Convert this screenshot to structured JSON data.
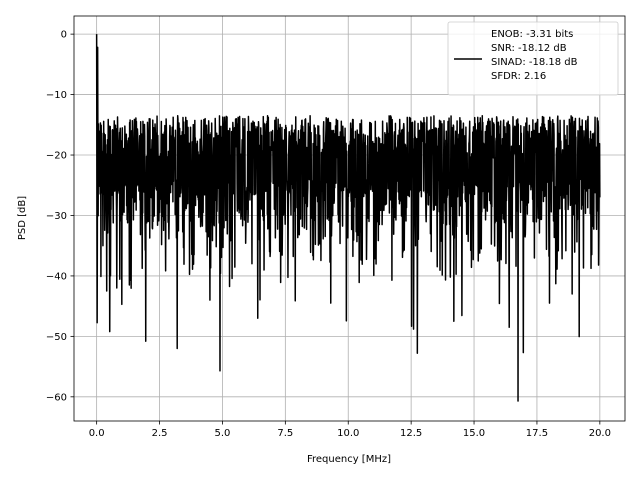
{
  "chart_data": {
    "type": "line",
    "title": "",
    "xlabel": "Frequency [MHz]",
    "ylabel": "PSD [dB]",
    "xlim": [
      -0.9,
      21.0
    ],
    "ylim": [
      -64.0,
      3.0
    ],
    "xticks": [
      0.0,
      2.5,
      5.0,
      7.5,
      10.0,
      12.5,
      15.0,
      17.5,
      20.0
    ],
    "xtick_labels": [
      "0.0",
      "2.5",
      "5.0",
      "7.5",
      "10.0",
      "12.5",
      "15.0",
      "17.5",
      "20.0"
    ],
    "yticks": [
      0,
      -10,
      -20,
      -30,
      -40,
      -50,
      -60
    ],
    "ytick_labels": [
      "0",
      "−10",
      "−20",
      "−30",
      "−40",
      "−50",
      "−60"
    ],
    "grid": true,
    "legend_position": "top-right",
    "series": [
      {
        "name": "ENOB: -3.31 bits\nSNR: -18.12 dB\nSINAD: -18.18 dB\nSFDR: 2.16",
        "color": "#000000",
        "x_range": [
          0.0,
          20.0
        ],
        "n_points": 2000,
        "peak": {
          "x": 0.0,
          "y": 0.0
        },
        "spurs": [
          {
            "x": 0.04,
            "y": -2.2
          },
          {
            "x": 0.12,
            "y": -17.5
          },
          {
            "x": 0.25,
            "y": -35.0
          },
          {
            "x": 0.4,
            "y": -42.5
          },
          {
            "x": 0.55,
            "y": -40.0
          },
          {
            "x": 0.8,
            "y": -42.0
          },
          {
            "x": 1.0,
            "y": -44.7
          },
          {
            "x": 1.3,
            "y": -41.5
          },
          {
            "x": 1.95,
            "y": -50.8
          },
          {
            "x": 3.2,
            "y": -52.0
          },
          {
            "x": 4.5,
            "y": -44.0
          },
          {
            "x": 4.9,
            "y": -55.7
          },
          {
            "x": 6.4,
            "y": -47.0
          },
          {
            "x": 9.3,
            "y": -44.5
          },
          {
            "x": 12.6,
            "y": -48.8
          },
          {
            "x": 12.75,
            "y": -52.8
          },
          {
            "x": 14.2,
            "y": -47.5
          },
          {
            "x": 16.4,
            "y": -48.5
          },
          {
            "x": 16.75,
            "y": -60.7
          },
          {
            "x": 18.0,
            "y": -44.5
          },
          {
            "x": 18.9,
            "y": -43.0
          }
        ],
        "upper_envelope_db": -13.5,
        "median_db": -21.0,
        "end_value": {
          "x": 20.0,
          "y": -27.0
        }
      }
    ]
  }
}
